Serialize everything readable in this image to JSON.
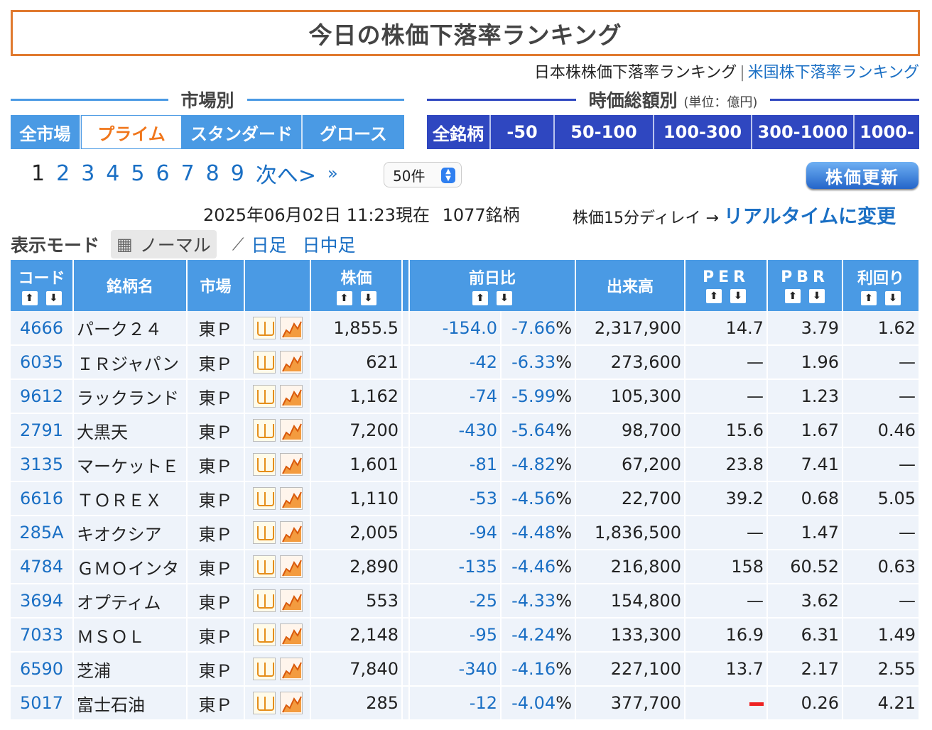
{
  "title": "今日の株価下落率ランキング",
  "subnav": {
    "current": "日本株株価下落率ランキング",
    "sep": "|",
    "link": "米国株下落率ランキング"
  },
  "market_section": {
    "label": "市場別",
    "tabs": [
      "全市場",
      "プライム",
      "スタンダード",
      "グロース"
    ],
    "active": 1
  },
  "cap_section": {
    "label": "時価総額別",
    "unit": "(単位：億円)",
    "tabs": [
      "全銘柄",
      "-50",
      "50-100",
      "100-300",
      "300-1000",
      "1000-"
    ]
  },
  "pager": {
    "pages": [
      "1",
      "2",
      "3",
      "4",
      "5",
      "6",
      "7",
      "8",
      "9"
    ],
    "next": "次へ>",
    "last": "»",
    "current": "1"
  },
  "per_page": "50件",
  "update_button": "株価更新",
  "info": {
    "datetime": "2025年06月02日 11:23現在",
    "count": "1077銘柄"
  },
  "delay": {
    "text": "株価15分ディレイ →",
    "link": "リアルタイムに変更"
  },
  "mode": {
    "label": "表示モード",
    "options": [
      "ノーマル",
      "日足",
      "日中足"
    ]
  },
  "table": {
    "headers": {
      "code": "コード",
      "name": "銘柄名",
      "market": "市場",
      "price": "株価",
      "change": "前日比",
      "volume": "出来高",
      "per": "PER",
      "pbr": "PBR",
      "yield": "利回り"
    },
    "rows": [
      {
        "code": "4666",
        "name": "パーク２４",
        "market": "東Ｐ",
        "price": "1,855.5",
        "chg": "-154.0",
        "pct": "-7.66",
        "vol": "2,317,900",
        "per": "14.7",
        "pbr": "3.79",
        "yld": "1.62"
      },
      {
        "code": "6035",
        "name": "ＩＲジャパン",
        "market": "東Ｐ",
        "price": "621",
        "chg": "-42",
        "pct": "-6.33",
        "vol": "273,600",
        "per": "—",
        "pbr": "1.96",
        "yld": "—"
      },
      {
        "code": "9612",
        "name": "ラックランド",
        "market": "東Ｐ",
        "price": "1,162",
        "chg": "-74",
        "pct": "-5.99",
        "vol": "105,300",
        "per": "—",
        "pbr": "1.23",
        "yld": "—"
      },
      {
        "code": "2791",
        "name": "大黒天",
        "market": "東Ｐ",
        "price": "7,200",
        "chg": "-430",
        "pct": "-5.64",
        "vol": "98,700",
        "per": "15.6",
        "pbr": "1.67",
        "yld": "0.46"
      },
      {
        "code": "3135",
        "name": "マーケットＥ",
        "market": "東Ｐ",
        "price": "1,601",
        "chg": "-81",
        "pct": "-4.82",
        "vol": "67,200",
        "per": "23.8",
        "pbr": "7.41",
        "yld": "—"
      },
      {
        "code": "6616",
        "name": "ＴＯＲＥＸ",
        "market": "東Ｐ",
        "price": "1,110",
        "chg": "-53",
        "pct": "-4.56",
        "vol": "22,700",
        "per": "39.2",
        "pbr": "0.68",
        "yld": "5.05"
      },
      {
        "code": "285A",
        "name": "キオクシア",
        "market": "東Ｐ",
        "price": "2,005",
        "chg": "-94",
        "pct": "-4.48",
        "vol": "1,836,500",
        "per": "—",
        "pbr": "1.47",
        "yld": "—"
      },
      {
        "code": "4784",
        "name": "ＧＭＯインタ",
        "market": "東Ｐ",
        "price": "2,890",
        "chg": "-135",
        "pct": "-4.46",
        "vol": "216,800",
        "per": "158",
        "pbr": "60.52",
        "yld": "0.63"
      },
      {
        "code": "3694",
        "name": "オプティム",
        "market": "東Ｐ",
        "price": "553",
        "chg": "-25",
        "pct": "-4.33",
        "vol": "154,800",
        "per": "—",
        "pbr": "3.62",
        "yld": "—"
      },
      {
        "code": "7033",
        "name": "ＭＳＯＬ",
        "market": "東Ｐ",
        "price": "2,148",
        "chg": "-95",
        "pct": "-4.24",
        "vol": "133,300",
        "per": "16.9",
        "pbr": "6.31",
        "yld": "1.49"
      },
      {
        "code": "6590",
        "name": "芝浦",
        "market": "東Ｐ",
        "price": "7,840",
        "chg": "-340",
        "pct": "-4.16",
        "vol": "227,100",
        "per": "13.7",
        "pbr": "2.17",
        "yld": "2.55"
      },
      {
        "code": "5017",
        "name": "富士石油",
        "market": "東Ｐ",
        "price": "285",
        "chg": "-12",
        "pct": "-4.04",
        "vol": "377,700",
        "per": "",
        "pbr": "0.26",
        "yld": "4.21",
        "per_red_dash": true
      }
    ]
  }
}
